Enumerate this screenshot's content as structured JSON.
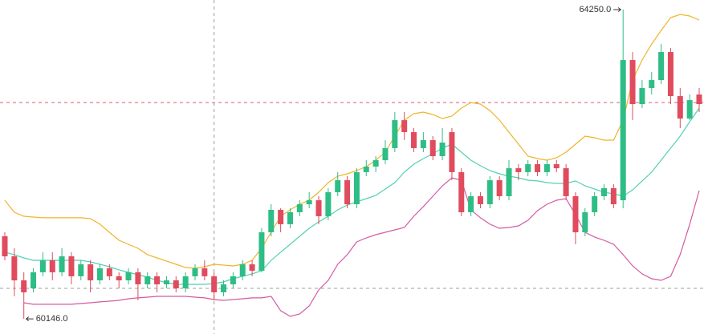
{
  "chart_data": {
    "type": "candlestick",
    "ylim": [
      59945,
      64378
    ],
    "up_color": "#2ebd85",
    "down_color": "#e04b5d",
    "open": [
      61242,
      60976,
      60657,
      60551,
      60764,
      60923,
      60764,
      60976,
      60711,
      60870,
      60657,
      60817,
      60711,
      60657,
      60764,
      60604,
      60711,
      60604,
      60657,
      60551,
      60711,
      60817,
      60711,
      60498,
      60604,
      60711,
      60870,
      60785,
      61295,
      61593,
      61402,
      61561,
      61667,
      61720,
      61508,
      61827,
      61986,
      61667,
      62093,
      62167,
      62252,
      62412,
      62783,
      62624,
      62412,
      62518,
      62305,
      62624,
      62093,
      61561,
      61774,
      61667,
      61986,
      61774,
      62145,
      62093,
      62199,
      62093,
      62199,
      62145,
      61774,
      61295,
      61561,
      61774,
      61880,
      61720,
      63581,
      62996,
      63209,
      63315,
      63687,
      63102,
      62805,
      63124
    ],
    "high": [
      61295,
      61083,
      60764,
      60817,
      61030,
      61030,
      61083,
      61030,
      60923,
      60923,
      60870,
      60870,
      60764,
      60817,
      60817,
      60764,
      60764,
      60711,
      60711,
      60764,
      60870,
      60923,
      60764,
      60657,
      60764,
      60923,
      60923,
      61348,
      61667,
      61614,
      61614,
      61720,
      61827,
      61774,
      61880,
      62093,
      62039,
      62145,
      62252,
      62305,
      62518,
      62890,
      62890,
      62677,
      62624,
      62571,
      62677,
      62677,
      62145,
      61827,
      61827,
      62039,
      62039,
      62252,
      62199,
      62252,
      62252,
      62252,
      62252,
      62199,
      61827,
      61614,
      61827,
      61933,
      61933,
      64250,
      63687,
      63315,
      63421,
      63793,
      63740,
      63209,
      63124,
      63209
    ],
    "low": [
      60923,
      60445,
      60146,
      60498,
      60711,
      60657,
      60711,
      60604,
      60657,
      60498,
      60604,
      60657,
      60551,
      60604,
      60392,
      60551,
      60498,
      60551,
      60498,
      60498,
      60657,
      60657,
      60392,
      60445,
      60551,
      60657,
      60711,
      60764,
      61242,
      61295,
      61348,
      61508,
      61614,
      61402,
      61455,
      61774,
      61614,
      61614,
      62039,
      62093,
      62199,
      62358,
      62518,
      62358,
      62358,
      62252,
      62252,
      61986,
      61508,
      61508,
      61614,
      61614,
      61720,
      61720,
      61986,
      62039,
      62039,
      62039,
      62093,
      61720,
      61136,
      61242,
      61508,
      61720,
      61614,
      61614,
      62783,
      62943,
      63124,
      63262,
      62996,
      62677,
      62783,
      62890
    ],
    "close": [
      60976,
      60657,
      60498,
      60764,
      60923,
      60764,
      60976,
      60711,
      60870,
      60657,
      60817,
      60711,
      60657,
      60764,
      60604,
      60711,
      60604,
      60657,
      60551,
      60711,
      60817,
      60711,
      60498,
      60604,
      60711,
      60870,
      60785,
      61295,
      61593,
      61402,
      61561,
      61667,
      61720,
      61508,
      61827,
      61986,
      61667,
      62093,
      62167,
      62252,
      62412,
      62783,
      62624,
      62412,
      62518,
      62305,
      62486,
      62093,
      61561,
      61774,
      61667,
      61986,
      61774,
      62145,
      62093,
      62199,
      62093,
      62199,
      62145,
      61774,
      61295,
      61561,
      61774,
      61880,
      61667,
      63581,
      62996,
      63209,
      63315,
      63687,
      63102,
      62805,
      63049,
      62996
    ],
    "bands": [
      {
        "color": "#f0b429",
        "values": [
          61720,
          61561,
          61508,
          61497,
          61487,
          61487,
          61487,
          61487,
          61487,
          61476,
          61402,
          61295,
          61189,
          61136,
          61083,
          60998,
          60955,
          60913,
          60870,
          60828,
          60817,
          60838,
          60870,
          60859,
          60849,
          60870,
          60923,
          61083,
          61295,
          61508,
          61593,
          61667,
          61720,
          61827,
          61954,
          62039,
          62071,
          62114,
          62167,
          62252,
          62358,
          62571,
          62783,
          62869,
          62890,
          62858,
          62805,
          62837,
          62943,
          63017,
          62996,
          62911,
          62783,
          62624,
          62465,
          62305,
          62273,
          62252,
          62284,
          62358,
          62465,
          62571,
          62550,
          62518,
          62518,
          62783,
          63315,
          63581,
          63793,
          63974,
          64144,
          64187,
          64165,
          64112
        ]
      },
      {
        "color": "#52d1b4",
        "values": [
          61030,
          60998,
          60955,
          60923,
          60923,
          60923,
          60923,
          60923,
          60923,
          60902,
          60870,
          60838,
          60796,
          60764,
          60732,
          60700,
          60657,
          60626,
          60604,
          60604,
          60604,
          60604,
          60615,
          60636,
          60679,
          60711,
          60743,
          60785,
          60923,
          61030,
          61136,
          61242,
          61348,
          61433,
          61508,
          61593,
          61657,
          61699,
          61742,
          61784,
          61869,
          61954,
          62093,
          62199,
          62273,
          62337,
          62412,
          62465,
          62358,
          62252,
          62178,
          62114,
          62071,
          62039,
          62018,
          61986,
          61976,
          61954,
          61944,
          61944,
          61976,
          61912,
          61869,
          61827,
          61805,
          61774,
          61859,
          61976,
          62093,
          62252,
          62412,
          62571,
          62762,
          62943
        ]
      },
      {
        "color": "#d45aa2",
        "values": [
          null,
          null,
          60360,
          60339,
          60339,
          60339,
          60339,
          60339,
          60350,
          60360,
          60371,
          60381,
          60392,
          60413,
          60424,
          60434,
          60445,
          60445,
          60445,
          60445,
          60434,
          60424,
          60402,
          60392,
          60402,
          60413,
          60424,
          60424,
          60445,
          60254,
          60179,
          60211,
          60317,
          60530,
          60657,
          60870,
          60998,
          61168,
          61221,
          61263,
          61295,
          61327,
          61359,
          61508,
          61636,
          61774,
          61912,
          62018,
          61986,
          61593,
          61487,
          61402,
          61348,
          61359,
          61380,
          61455,
          61582,
          61667,
          61720,
          61742,
          61529,
          61295,
          61232,
          61189,
          61136,
          60998,
          60849,
          60743,
          60679,
          60657,
          60711,
          60998,
          61402,
          61848
        ]
      }
    ],
    "price_lines": [
      {
        "value": 63017,
        "color": "#e05a6a"
      },
      {
        "value": 60551,
        "color": "#9e9e9e"
      }
    ],
    "crosshair_index": 22,
    "max_label": {
      "value": 64250,
      "label": "64250.0"
    },
    "min_label": {
      "value": 60146,
      "label": "60146.0"
    }
  }
}
